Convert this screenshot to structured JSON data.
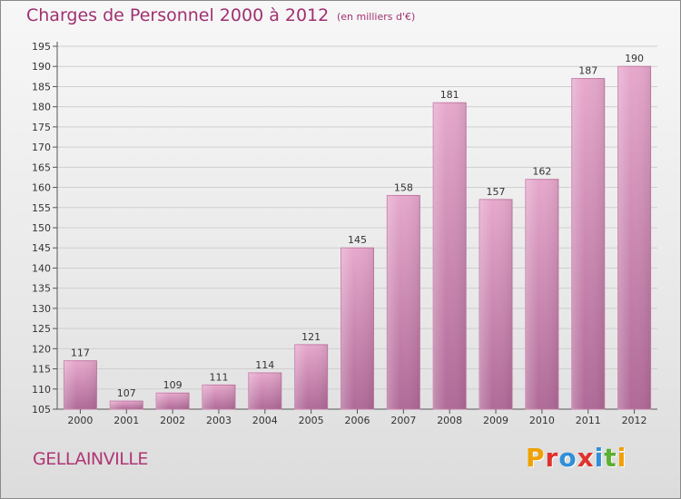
{
  "header": {
    "title": "Charges de Personnel 2000 à 2012",
    "subtitle": "(en milliers d'€)"
  },
  "footer": {
    "commune": "GELLAINVILLE",
    "logo_letters": [
      "P",
      "r",
      "o",
      "x",
      "i",
      "t",
      "i"
    ],
    "logo_colors": [
      "#f0a000",
      "#e0322d",
      "#2f8fd8",
      "#e0322d",
      "#2f8fd8",
      "#5ab030",
      "#f0a000"
    ]
  },
  "chart_data": {
    "type": "bar",
    "categories": [
      "2000",
      "2001",
      "2002",
      "2003",
      "2004",
      "2005",
      "2006",
      "2007",
      "2008",
      "2009",
      "2010",
      "2011",
      "2012"
    ],
    "values": [
      117,
      107,
      109,
      111,
      114,
      121,
      145,
      158,
      181,
      157,
      162,
      187,
      190
    ],
    "data_labels": [
      "117",
      "107",
      "109",
      "111",
      "114",
      "121",
      "145",
      "158",
      "181",
      "157",
      "162",
      "187",
      "190"
    ],
    "ylim": [
      105,
      195
    ],
    "yticks": [
      105,
      110,
      115,
      120,
      125,
      130,
      135,
      140,
      145,
      150,
      155,
      160,
      165,
      170,
      175,
      180,
      185,
      190,
      195
    ],
    "grid": true,
    "bar_color": "#d88ab6"
  }
}
